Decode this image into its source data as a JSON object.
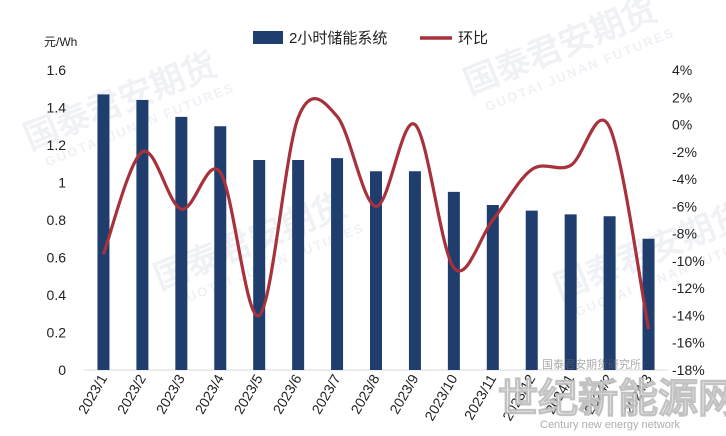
{
  "chart_data": {
    "type": "bar",
    "unit_label": "元/Wh",
    "categories": [
      "2023/1",
      "2023/2",
      "2023/3",
      "2023/4",
      "2023/5",
      "2023/6",
      "2023/7",
      "2023/8",
      "2023/9",
      "2023/10",
      "2023/11",
      "2023/12",
      "2024/1",
      "2024/2",
      "2024/3"
    ],
    "series": [
      {
        "name": "2小时储能系统",
        "kind": "bar",
        "axis": "left",
        "values": [
          1.47,
          1.44,
          1.35,
          1.3,
          1.12,
          1.12,
          1.13,
          1.06,
          1.06,
          0.95,
          0.88,
          0.85,
          0.83,
          0.82,
          0.7
        ]
      },
      {
        "name": "环比",
        "kind": "line",
        "axis": "right",
        "values": [
          -9.5,
          -2.0,
          -6.2,
          -3.5,
          -14.0,
          0.5,
          0.6,
          -6.0,
          0.0,
          -10.5,
          -7.0,
          -3.3,
          -3.0,
          -0.2,
          -15.0
        ]
      }
    ],
    "left_axis": {
      "min": 0,
      "max": 1.6,
      "ticks": [
        "0",
        "0.2",
        "0.4",
        "0.6",
        "0.8",
        "1",
        "1.2",
        "1.4",
        "1.6"
      ]
    },
    "right_axis": {
      "min": -18,
      "max": 4,
      "ticks": [
        "4%",
        "2%",
        "0%",
        "-2%",
        "-4%",
        "-6%",
        "-8%",
        "-10%",
        "-12%",
        "-14%",
        "-16%",
        "-18%"
      ]
    },
    "legend_position": "top",
    "colors": {
      "bar": "#1f3e6e",
      "line": "#a8323c"
    }
  },
  "watermark": {
    "company_cn": "国泰君安期货",
    "company_en": "GUOTAI JUNAN FUTURES",
    "site_cn": "世纪新能源网",
    "site_en": "Century new energy network",
    "stamp": "国泰君安期货研究所"
  }
}
